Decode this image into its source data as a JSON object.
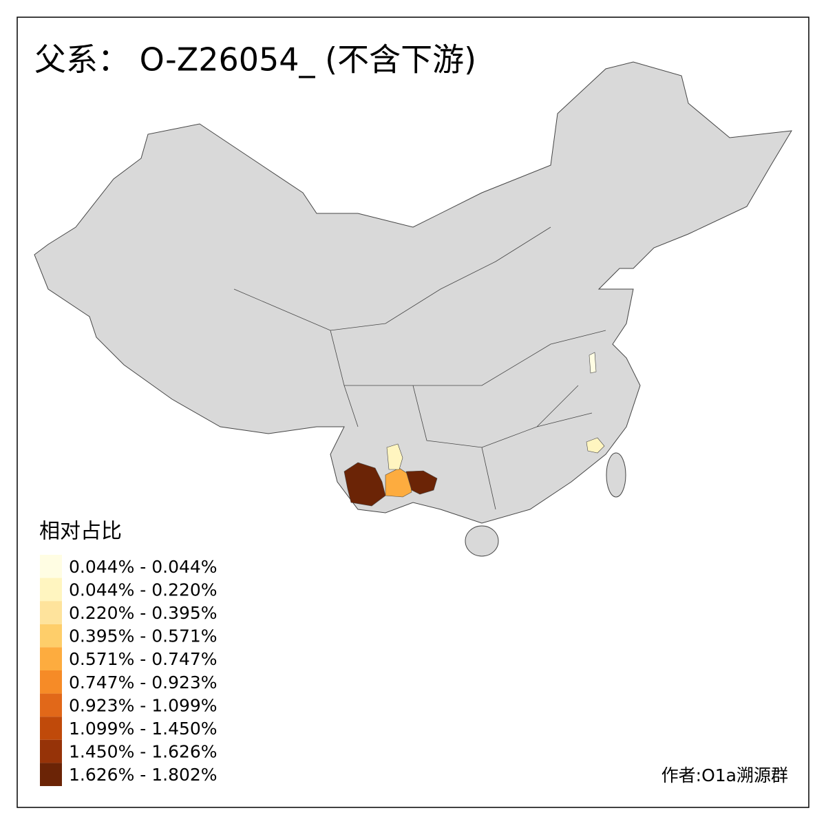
{
  "title": "父系： O-Z26054_ (不含下游)",
  "legend": {
    "title": "相对占比",
    "items": [
      {
        "label": "0.044% - 0.044%",
        "color": "#fffde3"
      },
      {
        "label": "0.044% - 0.220%",
        "color": "#fff5c0"
      },
      {
        "label": "0.220% - 0.395%",
        "color": "#fee39c"
      },
      {
        "label": "0.395% - 0.571%",
        "color": "#fece6a"
      },
      {
        "label": "0.571% - 0.747%",
        "color": "#fdac3f"
      },
      {
        "label": "0.747% - 0.923%",
        "color": "#f68b27"
      },
      {
        "label": "0.923% - 1.099%",
        "color": "#e16819"
      },
      {
        "label": "1.099% - 1.450%",
        "color": "#c04a0a"
      },
      {
        "label": "1.450% - 1.626%",
        "color": "#963308"
      },
      {
        "label": "1.626% - 1.802%",
        "color": "#6b2406"
      }
    ]
  },
  "credit": "作者:O1a溯源群"
}
